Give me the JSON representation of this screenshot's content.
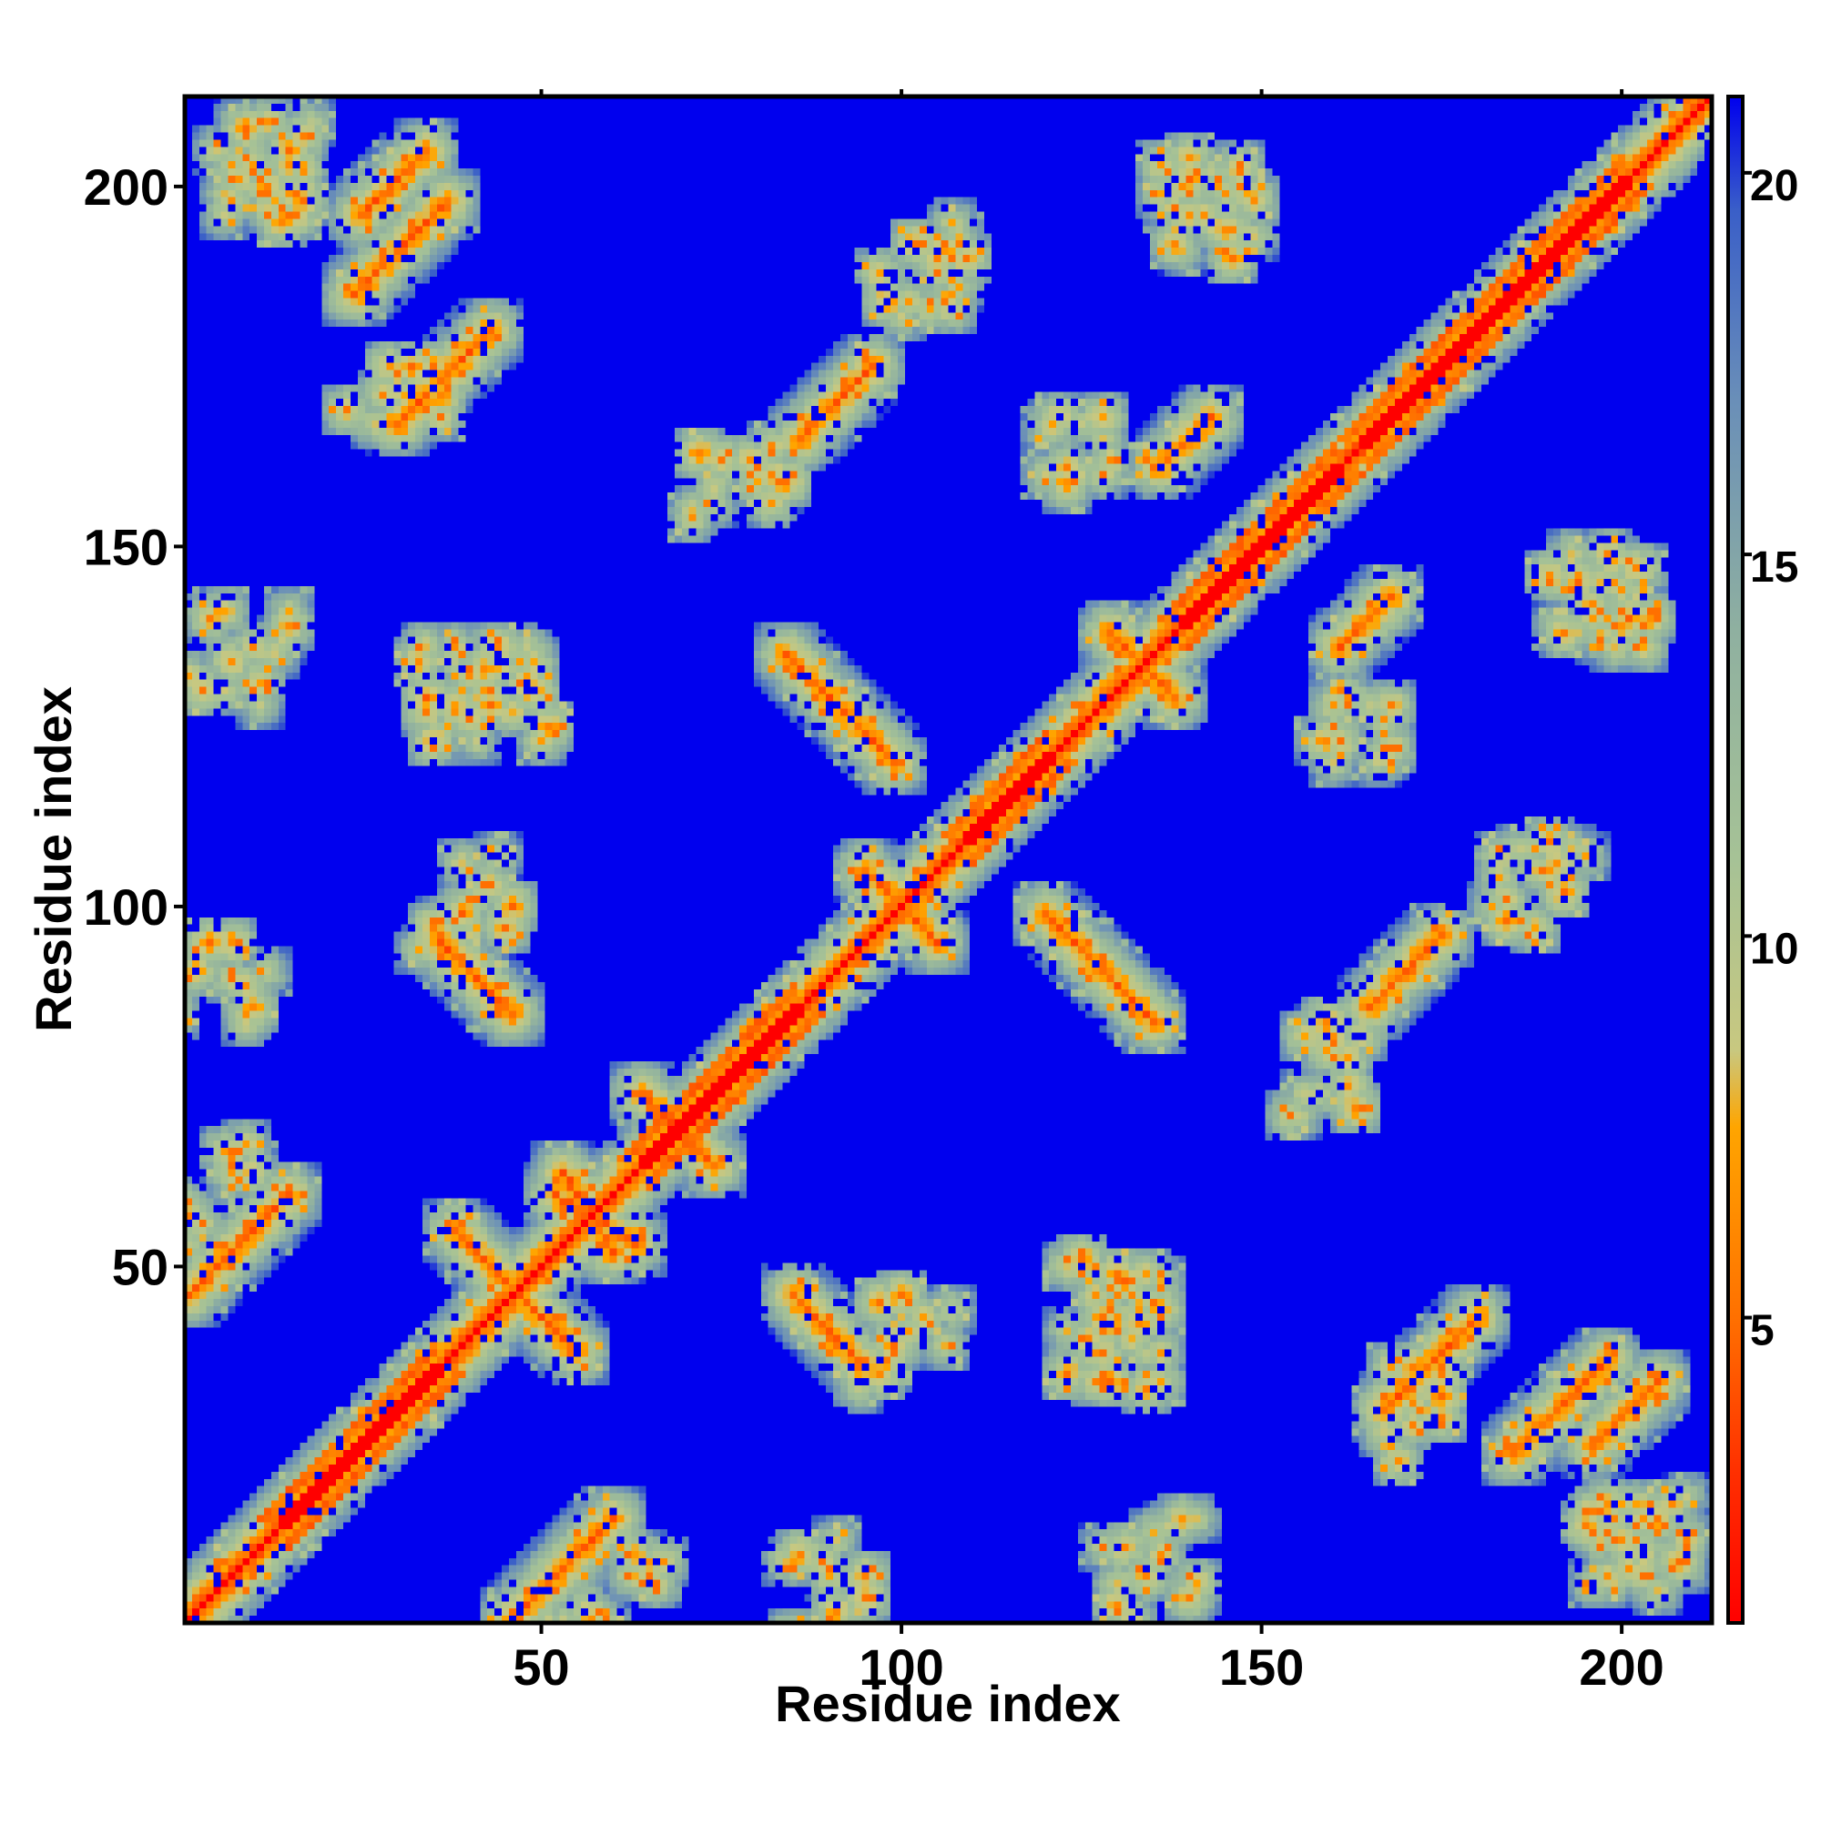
{
  "chart_data": {
    "type": "heatmap",
    "title": "",
    "xlabel": "Residue index",
    "ylabel": "Residue index",
    "xlim": [
      1,
      212
    ],
    "ylim": [
      1,
      212
    ],
    "x_ticks": [
      50,
      100,
      150,
      200
    ],
    "y_ticks": [
      50,
      100,
      150,
      200
    ],
    "x_tick_labels": [
      "50",
      "100",
      "150",
      "200"
    ],
    "y_tick_labels": [
      "50",
      "100",
      "150",
      "200"
    ],
    "n_residues": 212,
    "grid": false,
    "legend": "colorbar-right",
    "colorbar": {
      "range": [
        1,
        21
      ],
      "ticks": [
        5,
        10,
        15,
        20
      ],
      "tick_labels": [
        "5",
        "10",
        "15",
        "20"
      ],
      "stops": [
        {
          "value": 1,
          "color": "#ff0000"
        },
        {
          "value": 3,
          "color": "#ff3000"
        },
        {
          "value": 5,
          "color": "#ff7000"
        },
        {
          "value": 7.5,
          "color": "#ffa500"
        },
        {
          "value": 8.5,
          "color": "#c8c880"
        },
        {
          "value": 11,
          "color": "#a6c296"
        },
        {
          "value": 14,
          "color": "#8fb0a0"
        },
        {
          "value": 17,
          "color": "#6a8fb8"
        },
        {
          "value": 19.5,
          "color": "#3a5fc8"
        },
        {
          "value": 21,
          "color": "#0000ee"
        }
      ]
    },
    "contact_features": [
      {
        "kind": "diagonal",
        "start": 1,
        "end": 212
      },
      {
        "kind": "helix-band",
        "start": 15,
        "end": 35
      },
      {
        "kind": "helix-band",
        "start": 65,
        "end": 85
      },
      {
        "kind": "helix-band",
        "start": 110,
        "end": 120
      },
      {
        "kind": "helix-band",
        "start": 140,
        "end": 160
      },
      {
        "kind": "helix-band",
        "start": 165,
        "end": 200
      },
      {
        "kind": "antiparallel",
        "x": [
          38,
          46
        ],
        "y": [
          93,
          85
        ]
      },
      {
        "kind": "antiparallel",
        "x": [
          85,
          97
        ],
        "y": [
          134,
          122
        ]
      },
      {
        "kind": "antiparallel",
        "x": [
          120,
          135
        ],
        "y": [
          99,
          84
        ]
      },
      {
        "kind": "antiparallel",
        "x": [
          85,
          95
        ],
        "y": [
          46,
          36
        ]
      },
      {
        "kind": "antiparallel",
        "x": [
          39,
          55
        ],
        "y": [
          54,
          38
        ]
      },
      {
        "kind": "antiparallel",
        "x": [
          65,
          74
        ],
        "y": [
          73,
          64
        ]
      },
      {
        "kind": "antiparallel",
        "x": [
          53,
          60
        ],
        "y": [
          63,
          52
        ]
      },
      {
        "kind": "antiparallel",
        "x": [
          97,
          105
        ],
        "y": [
          103,
          95
        ]
      },
      {
        "kind": "antiparallel",
        "x": [
          129,
          138
        ],
        "y": [
          138,
          129
        ]
      },
      {
        "kind": "parallel",
        "x": [
          1,
          15
        ],
        "y": [
          46,
          60
        ]
      },
      {
        "kind": "parallel",
        "x": [
          25,
          34
        ],
        "y": [
          196,
          205
        ]
      },
      {
        "kind": "parallel",
        "x": [
          167,
          180
        ],
        "y": [
          30,
          43
        ]
      },
      {
        "kind": "parallel",
        "x": [
          185,
          198
        ],
        "y": [
          24,
          37
        ]
      },
      {
        "kind": "parallel",
        "x": [
          161,
          168
        ],
        "y": [
          136,
          143
        ]
      },
      {
        "kind": "parallel",
        "x": [
          165,
          175
        ],
        "y": [
          86,
          96
        ]
      },
      {
        "kind": "cluster",
        "x": 10,
        "y": 200
      },
      {
        "kind": "cluster",
        "x": 30,
        "y": 172
      },
      {
        "kind": "cluster",
        "x": 78,
        "y": 157
      },
      {
        "kind": "cluster",
        "x": 125,
        "y": 165
      },
      {
        "kind": "cluster",
        "x": 142,
        "y": 197
      },
      {
        "kind": "cluster",
        "x": 196,
        "y": 143
      },
      {
        "kind": "cluster",
        "x": 188,
        "y": 103
      },
      {
        "kind": "cluster",
        "x": 60,
        "y": 7
      },
      {
        "kind": "cluster",
        "x": 100,
        "y": 40
      },
      {
        "kind": "cluster",
        "x": 130,
        "y": 40
      },
      {
        "kind": "cluster",
        "x": 203,
        "y": 12
      },
      {
        "kind": "cluster",
        "x": 45,
        "y": 130
      },
      {
        "kind": "cluster",
        "x": 5,
        "y": 90
      },
      {
        "kind": "cluster",
        "x": 8,
        "y": 135
      }
    ]
  }
}
